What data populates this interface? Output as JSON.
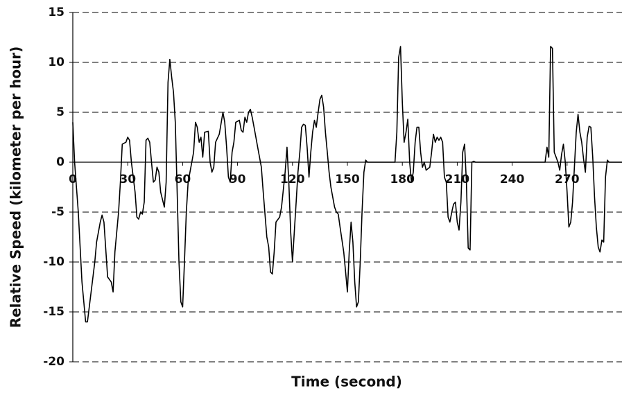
{
  "chart_data": {
    "type": "line",
    "x_label": "Time (second)",
    "y_label": "Relative Speed (kilometer per hour)",
    "color": "#000000",
    "grid": true,
    "xlim": [
      0,
      300
    ],
    "xticks": [
      0,
      30,
      60,
      90,
      120,
      150,
      180,
      210,
      240,
      270
    ],
    "ylim": [
      -20,
      15
    ],
    "yticks": [
      -20,
      -15,
      -10,
      -5,
      0,
      5,
      10,
      15
    ],
    "x": [
      0,
      1,
      3,
      5,
      7,
      8,
      10,
      12,
      13,
      15,
      16,
      17,
      19,
      21,
      22,
      23,
      25,
      26,
      27,
      29,
      30,
      31,
      32,
      34,
      35,
      36,
      37,
      38,
      39,
      40,
      41,
      42,
      43,
      44,
      45,
      46,
      47,
      48,
      50,
      51,
      52,
      53,
      54,
      55,
      56,
      57,
      58,
      59,
      60,
      61,
      62,
      63,
      65,
      66,
      67,
      68,
      69,
      70,
      71,
      72,
      74,
      75,
      76,
      77,
      78,
      80,
      82,
      83,
      84,
      85,
      86,
      87,
      88,
      89,
      91,
      92,
      93,
      94,
      95,
      96,
      97,
      98,
      99,
      100,
      101,
      103,
      104,
      106,
      107,
      108,
      109,
      110,
      111,
      113,
      114,
      116,
      117,
      118,
      119,
      120,
      121,
      122,
      123,
      124,
      125,
      126,
      127,
      128,
      129,
      130,
      131,
      132,
      133,
      134,
      135,
      136,
      137,
      138,
      139,
      140,
      141,
      143,
      144,
      145,
      146,
      148,
      149,
      150,
      151,
      152,
      153,
      154,
      155,
      156,
      157,
      158,
      159,
      160,
      161,
      176,
      177,
      178,
      179,
      180,
      181,
      182,
      183,
      184,
      185,
      186,
      187,
      188,
      189,
      190,
      191,
      192,
      193,
      195,
      196,
      197,
      198,
      199,
      200,
      201,
      202,
      203,
      204,
      205,
      206,
      207,
      208,
      209,
      210,
      211,
      212,
      213,
      214,
      215,
      216,
      217,
      218,
      219,
      220,
      258,
      259,
      260,
      261,
      262,
      263,
      264,
      265,
      266,
      267,
      268,
      269,
      270,
      271,
      272,
      273,
      275,
      276,
      277,
      278,
      279,
      280,
      281,
      282,
      283,
      284,
      285,
      286,
      287,
      288,
      289,
      290,
      291,
      292,
      293,
      300
    ],
    "values": [
      4,
      0,
      -5,
      -12,
      -16,
      -16,
      -13,
      -10,
      -8,
      -6,
      -5.3,
      -6,
      -11.5,
      -12,
      -13,
      -9,
      -5,
      -2,
      1.8,
      2,
      2.5,
      2.2,
      0,
      -3,
      -5.5,
      -5.7,
      -5,
      -5.2,
      -4,
      2.2,
      2.4,
      2,
      0,
      -2,
      -1.8,
      -0.5,
      -1,
      -3,
      -4.5,
      -2,
      8,
      10.3,
      8.5,
      7,
      4,
      -3,
      -10,
      -14,
      -14.5,
      -10,
      -5,
      -2,
      0,
      1,
      4,
      3.5,
      2,
      2.5,
      0.5,
      3,
      3.1,
      0,
      -1,
      -0.5,
      2,
      2.8,
      5,
      4,
      1.5,
      -1.5,
      -2,
      1,
      2,
      4,
      4.2,
      3.2,
      3,
      4.5,
      4,
      5,
      5.3,
      4.5,
      3.5,
      2.5,
      1.5,
      -0.5,
      -3,
      -7.5,
      -8.5,
      -11,
      -11.2,
      -9,
      -6,
      -5.5,
      -4.5,
      -1,
      1.5,
      -2,
      -7,
      -10,
      -7,
      -4,
      -1,
      1,
      3.5,
      3.8,
      3.7,
      1.5,
      -1.5,
      1,
      3,
      4.2,
      3.5,
      5,
      6.3,
      6.7,
      5.5,
      3,
      1,
      -1,
      -2.5,
      -4.5,
      -5,
      -5.2,
      -6.5,
      -9,
      -11,
      -13,
      -9,
      -6,
      -8,
      -12,
      -14.5,
      -14,
      -10,
      -5,
      -1,
      0.2,
      0,
      0,
      3,
      10.5,
      11.6,
      6,
      2,
      3,
      4.3,
      0,
      -2,
      -1,
      2,
      3.5,
      3.5,
      1,
      -0.5,
      0,
      -0.8,
      -0.5,
      1,
      2.8,
      2,
      2.5,
      2.2,
      2.5,
      2,
      -1.5,
      -2,
      -5.5,
      -6,
      -5,
      -4.2,
      -4,
      -6,
      -6.8,
      -4,
      1,
      1.8,
      -2,
      -8.6,
      -8.8,
      0,
      0.1,
      0,
      0,
      1.5,
      0.5,
      11.6,
      11.4,
      1,
      0.5,
      0,
      -0.8,
      0.8,
      1.8,
      0,
      -3,
      -6.5,
      -6,
      -4,
      3,
      4.8,
      3,
      2,
      0.3,
      -1,
      2.5,
      3.6,
      3.5,
      0.5,
      -3.5,
      -6.5,
      -8.5,
      -9,
      -7.8,
      -8,
      -1.5,
      0.2,
      0,
      0
    ]
  }
}
